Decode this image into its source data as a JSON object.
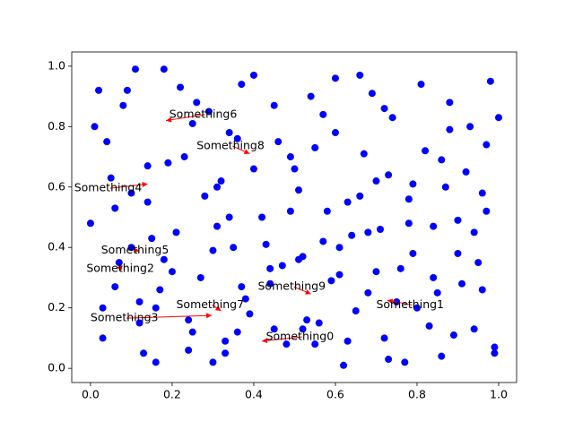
{
  "chart_data": {
    "type": "scatter",
    "color": "#0000ff",
    "arrow_color": "#ff0000",
    "x": [
      0.01,
      0.03,
      0.05,
      0.07,
      0.09,
      0.12,
      0.14,
      0.16,
      0.18,
      0.21,
      0.23,
      0.25,
      0.27,
      0.29,
      0.31,
      0.33,
      0.35,
      0.37,
      0.39,
      0.42,
      0.44,
      0.46,
      0.48,
      0.5,
      0.52,
      0.54,
      0.56,
      0.58,
      0.6,
      0.62,
      0.64,
      0.66,
      0.68,
      0.7,
      0.72,
      0.74,
      0.76,
      0.78,
      0.8,
      0.82,
      0.84,
      0.86,
      0.88,
      0.9,
      0.92,
      0.94,
      0.96,
      0.98,
      1.0,
      0.0,
      0.04,
      0.06,
      0.1,
      0.13,
      0.15,
      0.19,
      0.2,
      0.24,
      0.26,
      0.3,
      0.32,
      0.34,
      0.38,
      0.4,
      0.43,
      0.45,
      0.49,
      0.51,
      0.55,
      0.57,
      0.59,
      0.63,
      0.65,
      0.69,
      0.71,
      0.73,
      0.77,
      0.79,
      0.81,
      0.85,
      0.87,
      0.89,
      0.93,
      0.95,
      0.97,
      0.99,
      0.11,
      0.36,
      0.61,
      0.03,
      0.08,
      0.1,
      0.14,
      0.17,
      0.22,
      0.24,
      0.28,
      0.3,
      0.34,
      0.36,
      0.4,
      0.45,
      0.47,
      0.51,
      0.53,
      0.57,
      0.6,
      0.63,
      0.67,
      0.7,
      0.72,
      0.75,
      0.78,
      0.83,
      0.86,
      0.91,
      0.94,
      0.97,
      0.99,
      0.06,
      0.12,
      0.18,
      0.25,
      0.31,
      0.37,
      0.44,
      0.49,
      0.55,
      0.61,
      0.66,
      0.73,
      0.79,
      0.84,
      0.9,
      0.96,
      0.02,
      0.16,
      0.33,
      0.52,
      0.68,
      0.88
    ],
    "values": [
      0.8,
      0.1,
      0.63,
      0.35,
      0.92,
      0.22,
      0.55,
      0.02,
      0.99,
      0.45,
      0.7,
      0.12,
      0.3,
      0.85,
      0.6,
      0.05,
      0.4,
      0.94,
      0.18,
      0.5,
      0.28,
      0.75,
      0.08,
      0.66,
      0.37,
      0.9,
      0.15,
      0.52,
      0.78,
      0.01,
      0.44,
      0.97,
      0.25,
      0.62,
      0.1,
      0.83,
      0.33,
      0.56,
      0.2,
      0.72,
      0.47,
      0.04,
      0.88,
      0.38,
      0.65,
      0.13,
      0.58,
      0.95,
      0.83,
      0.48,
      0.75,
      0.27,
      0.58,
      0.05,
      0.43,
      0.68,
      0.32,
      0.16,
      0.88,
      0.02,
      0.62,
      0.5,
      0.23,
      0.97,
      0.41,
      0.13,
      0.7,
      0.36,
      0.08,
      0.84,
      0.29,
      0.55,
      0.19,
      0.91,
      0.46,
      0.64,
      0.02,
      0.38,
      0.94,
      0.25,
      0.6,
      0.11,
      0.8,
      0.35,
      0.52,
      0.07,
      0.99,
      0.76,
      0.31,
      0.2,
      0.87,
      0.4,
      0.67,
      0.26,
      0.93,
      0.06,
      0.57,
      0.39,
      0.78,
      0.12,
      0.66,
      0.87,
      0.34,
      0.59,
      0.16,
      0.42,
      0.96,
      0.09,
      0.71,
      0.32,
      0.86,
      0.22,
      0.48,
      0.14,
      0.69,
      0.28,
      0.45,
      0.74,
      0.05,
      0.53,
      0.15,
      0.36,
      0.81,
      0.47,
      0.27,
      0.33,
      0.52,
      0.73,
      0.4,
      0.57,
      0.03,
      0.61,
      0.3,
      0.49,
      0.26,
      0.92,
      0.2,
      0.09,
      0.13,
      0.45,
      0.79
    ],
    "annotations": [
      {
        "text": "Something0",
        "xy": [
          0.42,
          0.09
        ],
        "xytext": [
          0.43,
          0.104
        ]
      },
      {
        "text": "Something1",
        "xy": [
          0.727,
          0.225
        ],
        "xytext": [
          0.7,
          0.21
        ]
      },
      {
        "text": "Something2",
        "xy": [
          0.064,
          0.335
        ],
        "xytext": [
          -0.01,
          0.33
        ]
      },
      {
        "text": "Something3",
        "xy": [
          0.297,
          0.175
        ],
        "xytext": [
          0.0,
          0.166
        ]
      },
      {
        "text": "Something4",
        "xy": [
          0.14,
          0.61
        ],
        "xytext": [
          -0.04,
          0.596
        ]
      },
      {
        "text": "Something5",
        "xy": [
          0.12,
          0.39
        ],
        "xytext": [
          0.026,
          0.39
        ]
      },
      {
        "text": "Something6",
        "xy": [
          0.185,
          0.82
        ],
        "xytext": [
          0.193,
          0.84
        ]
      },
      {
        "text": "Something7",
        "xy": [
          0.32,
          0.19
        ],
        "xytext": [
          0.21,
          0.21
        ]
      },
      {
        "text": "Something8",
        "xy": [
          0.39,
          0.71
        ],
        "xytext": [
          0.26,
          0.736
        ]
      },
      {
        "text": "Something9",
        "xy": [
          0.54,
          0.246
        ],
        "xytext": [
          0.41,
          0.27
        ]
      }
    ],
    "xlim": [
      -0.046,
      1.044
    ],
    "ylim": [
      -0.047,
      1.047
    ],
    "xticks": [
      {
        "value": 0,
        "label": "0.0"
      },
      {
        "value": 0.2,
        "label": "0.2"
      },
      {
        "value": 0.4,
        "label": "0.4"
      },
      {
        "value": 0.6,
        "label": "0.6"
      },
      {
        "value": 0.8,
        "label": "0.8"
      },
      {
        "value": 1,
        "label": "1.0"
      }
    ],
    "yticks": [
      {
        "value": 0,
        "label": "0.0"
      },
      {
        "value": 0.2,
        "label": "0.2"
      },
      {
        "value": 0.4,
        "label": "0.4"
      },
      {
        "value": 0.6,
        "label": "0.6"
      },
      {
        "value": 0.8,
        "label": "0.8"
      },
      {
        "value": 1,
        "label": "1.0"
      }
    ]
  }
}
